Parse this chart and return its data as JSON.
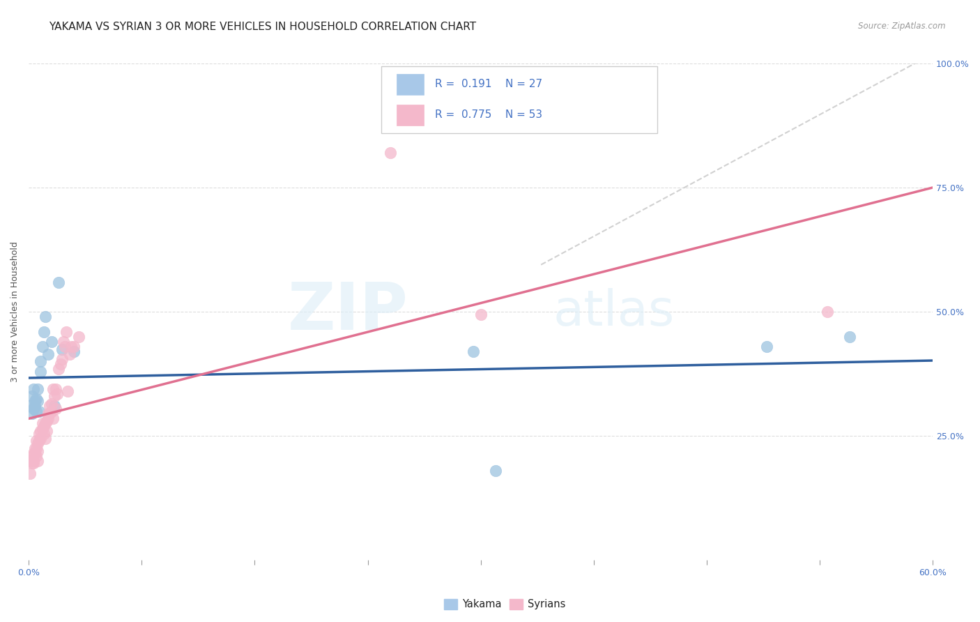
{
  "title": "YAKAMA VS SYRIAN 3 OR MORE VEHICLES IN HOUSEHOLD CORRELATION CHART",
  "source": "Source: ZipAtlas.com",
  "ylabel": "3 or more Vehicles in Household",
  "yakama_color": "#9dc3e0",
  "syrians_color": "#f4b8cb",
  "yakama_line_color": "#2f5f9e",
  "syrians_line_color": "#e07090",
  "diagonal_color": "#cccccc",
  "background_color": "#ffffff",
  "grid_color": "#dddddd",
  "x_min": 0.0,
  "x_max": 0.6,
  "y_min": 0.0,
  "y_max": 1.0,
  "yakama_R": "0.191",
  "yakama_N": "27",
  "syrians_R": "0.775",
  "syrians_N": "53",
  "yakama_x": [
    0.001,
    0.002,
    0.002,
    0.003,
    0.003,
    0.004,
    0.004,
    0.005,
    0.005,
    0.006,
    0.006,
    0.007,
    0.008,
    0.008,
    0.009,
    0.01,
    0.011,
    0.013,
    0.015,
    0.017,
    0.02,
    0.022,
    0.03,
    0.295,
    0.31,
    0.49,
    0.545
  ],
  "yakama_y": [
    0.31,
    0.295,
    0.33,
    0.305,
    0.345,
    0.31,
    0.32,
    0.3,
    0.325,
    0.32,
    0.345,
    0.3,
    0.4,
    0.38,
    0.43,
    0.46,
    0.49,
    0.415,
    0.44,
    0.31,
    0.56,
    0.425,
    0.42,
    0.42,
    0.18,
    0.43,
    0.45
  ],
  "syrians_x": [
    0.001,
    0.001,
    0.002,
    0.002,
    0.003,
    0.003,
    0.003,
    0.004,
    0.004,
    0.005,
    0.005,
    0.005,
    0.006,
    0.006,
    0.006,
    0.007,
    0.007,
    0.008,
    0.008,
    0.009,
    0.009,
    0.01,
    0.01,
    0.011,
    0.011,
    0.012,
    0.012,
    0.013,
    0.013,
    0.014,
    0.014,
    0.015,
    0.015,
    0.016,
    0.016,
    0.017,
    0.018,
    0.018,
    0.019,
    0.02,
    0.021,
    0.022,
    0.023,
    0.024,
    0.025,
    0.026,
    0.027,
    0.028,
    0.03,
    0.033,
    0.3,
    0.53,
    0.24
  ],
  "syrians_y": [
    0.2,
    0.175,
    0.21,
    0.195,
    0.2,
    0.215,
    0.195,
    0.215,
    0.225,
    0.21,
    0.225,
    0.24,
    0.2,
    0.22,
    0.235,
    0.24,
    0.255,
    0.245,
    0.26,
    0.265,
    0.275,
    0.255,
    0.27,
    0.245,
    0.275,
    0.26,
    0.28,
    0.285,
    0.295,
    0.295,
    0.31,
    0.315,
    0.3,
    0.345,
    0.285,
    0.33,
    0.305,
    0.345,
    0.335,
    0.385,
    0.395,
    0.405,
    0.44,
    0.43,
    0.46,
    0.34,
    0.415,
    0.43,
    0.43,
    0.45,
    0.495,
    0.5,
    0.82
  ],
  "watermark_zip": "ZIP",
  "watermark_atlas": "atlas",
  "title_fontsize": 11,
  "axis_label_fontsize": 9,
  "tick_fontsize": 9,
  "legend_fontsize": 11
}
